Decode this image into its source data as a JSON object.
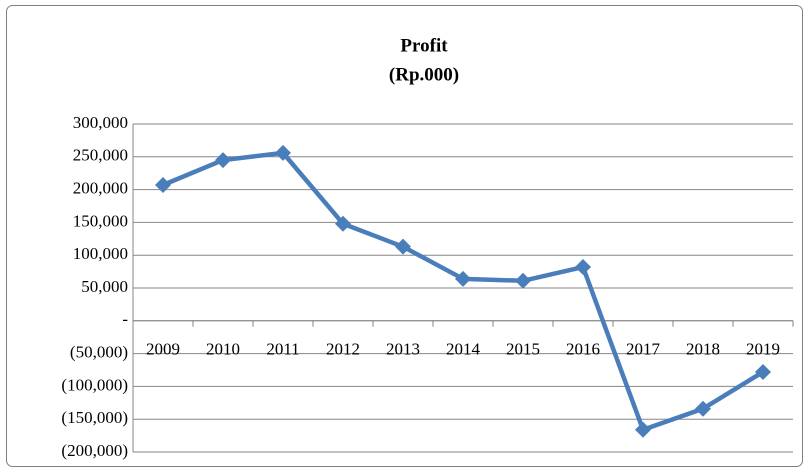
{
  "chart_data": {
    "type": "line",
    "title": "Profit",
    "subtitle": "(Rp.000)",
    "categories": [
      "2009",
      "2010",
      "2011",
      "2012",
      "2013",
      "2014",
      "2015",
      "2016",
      "2017",
      "2018",
      "2019"
    ],
    "series": [
      {
        "name": "Profit",
        "color": "#4a7ebb",
        "values": [
          207000,
          245000,
          256000,
          148000,
          113000,
          64000,
          61000,
          82000,
          -166000,
          -134000,
          -78000
        ]
      }
    ],
    "ylim": [
      -200000,
      300000
    ],
    "yticks": [
      {
        "value": -200000,
        "label": "(200,000)"
      },
      {
        "value": -150000,
        "label": "(150,000)"
      },
      {
        "value": -100000,
        "label": "(100,000)"
      },
      {
        "value": -50000,
        "label": "(50,000)"
      },
      {
        "value": 0,
        "label": "-"
      },
      {
        "value": 50000,
        "label": "50,000"
      },
      {
        "value": 100000,
        "label": "100,000"
      },
      {
        "value": 150000,
        "label": "150,000"
      },
      {
        "value": 200000,
        "label": "200,000"
      },
      {
        "value": 250000,
        "label": "250,000"
      },
      {
        "value": 300000,
        "label": "300,000"
      }
    ],
    "grid": true
  }
}
